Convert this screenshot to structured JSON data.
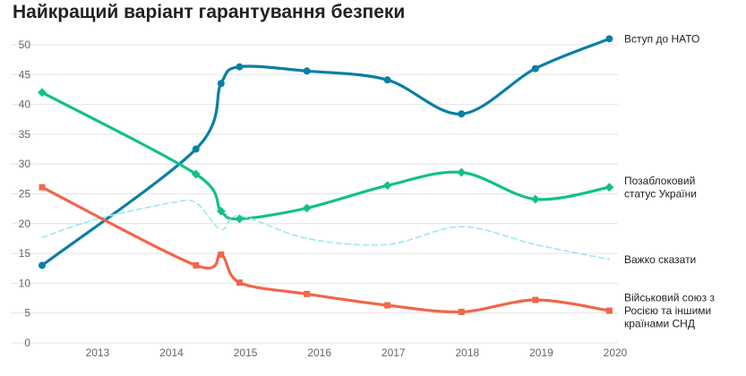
{
  "chart_data": {
    "type": "line",
    "title": "Найкращий варіант гарантування безпеки",
    "xlabel": "",
    "ylabel": "",
    "ylim": [
      0,
      50
    ],
    "xlim": [
      2012.25,
      2020
    ],
    "yticks": [
      0,
      5,
      10,
      15,
      20,
      25,
      30,
      35,
      40,
      45,
      50
    ],
    "xticks": [
      2013,
      2014,
      2015,
      2016,
      2017,
      2018,
      2019,
      2020
    ],
    "grid": true,
    "legend": "labels at line ends (right)",
    "series": [
      {
        "name": "Вступ до НАТО",
        "label_lines": [
          "Вступ до НАТО"
        ],
        "color": "#0b7ea6",
        "marker": "circle",
        "style": "solid",
        "x": [
          2012.25,
          2014.33,
          2014.67,
          2014.92,
          2015.83,
          2016.92,
          2017.92,
          2018.92,
          2019.92
        ],
        "y": [
          13,
          32.5,
          43.5,
          46.3,
          45.6,
          44.1,
          38.4,
          46,
          51
        ]
      },
      {
        "name": "Позаблоковий статус України",
        "label_lines": [
          "Позаблоковий",
          "статус України"
        ],
        "color": "#12c08a",
        "marker": "diamond",
        "style": "solid",
        "x": [
          2012.25,
          2014.33,
          2014.67,
          2014.92,
          2015.83,
          2016.92,
          2017.92,
          2018.92,
          2019.92
        ],
        "y": [
          42,
          28.3,
          22.1,
          20.8,
          22.6,
          26.4,
          28.6,
          24.1,
          26.1
        ]
      },
      {
        "name": "Важко сказати",
        "label_lines": [
          "Важко сказати"
        ],
        "color": "#9be8f2",
        "marker": "none",
        "style": "dashed",
        "x": [
          2012.25,
          2013.0,
          2014.0,
          2014.33,
          2014.67,
          2014.92,
          2015.83,
          2016.92,
          2017.92,
          2018.92,
          2019.92
        ],
        "y": [
          17.7,
          20.8,
          23.5,
          23.5,
          19,
          21.3,
          17.5,
          16.5,
          19.5,
          16.5,
          14
        ]
      },
      {
        "name": "Військовий союз з Росією та іншими країнами СНД",
        "label_lines": [
          "Військовий союз з",
          "Росією та іншими",
          "країнами СНД"
        ],
        "color": "#f2654b",
        "marker": "square",
        "style": "solid",
        "x": [
          2012.25,
          2014.33,
          2014.67,
          2014.92,
          2015.83,
          2016.92,
          2017.92,
          2018.92,
          2019.92
        ],
        "y": [
          26.1,
          13,
          14.8,
          10.1,
          8.2,
          6.3,
          5.2,
          7.2,
          5.4
        ]
      }
    ]
  }
}
